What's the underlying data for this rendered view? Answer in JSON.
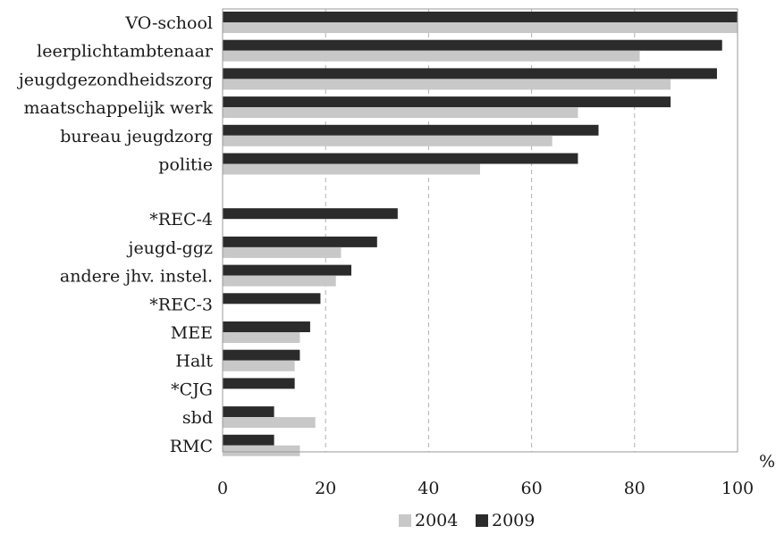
{
  "chart_data": {
    "type": "bar",
    "orientation": "horizontal",
    "categories": [
      "VO-school",
      "leerplichtambtenaar",
      "jeugdgezondheidszorg",
      "maatschappelijk werk",
      "bureau jeugdzorg",
      "politie",
      "*REC-4",
      "jeugd-ggz",
      "andere jhv. instel.",
      "*REC-3",
      "MEE",
      "Halt",
      "*CJG",
      "sbd",
      "RMC"
    ],
    "series": [
      {
        "name": "2004",
        "color": "#c8c8c8",
        "values": [
          100,
          81,
          87,
          69,
          64,
          50,
          null,
          23,
          22,
          null,
          15,
          14,
          null,
          18,
          15
        ]
      },
      {
        "name": "2009",
        "color": "#2b2b2b",
        "values": [
          100,
          97,
          96,
          87,
          73,
          69,
          34,
          30,
          25,
          19,
          17,
          15,
          14,
          10,
          10
        ]
      }
    ],
    "xlim": [
      0,
      100
    ],
    "xticks": [
      "0",
      "20",
      "40",
      "60",
      "80",
      "100"
    ],
    "xlabel": "%",
    "grid": "vertical dashed",
    "legend": "bottom-center"
  }
}
